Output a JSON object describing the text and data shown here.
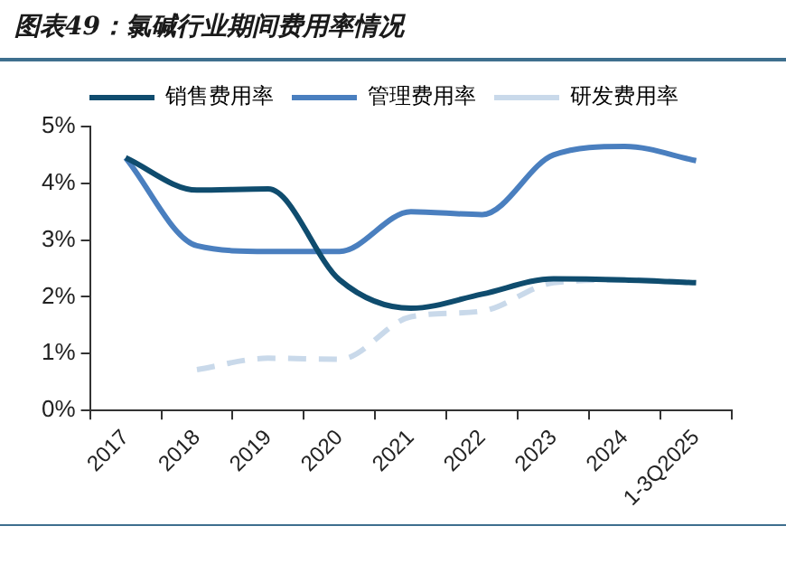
{
  "chart_data": {
    "type": "line",
    "title": "图表49：氯碱行业期间费用率情况",
    "categories": [
      "2017",
      "2018",
      "2019",
      "2020",
      "2021",
      "2022",
      "2023",
      "2024",
      "1-3Q2025"
    ],
    "series": [
      {
        "name": "销售费用率",
        "color": "#0f4c6e",
        "values": [
          4.45,
          3.88,
          3.9,
          2.3,
          1.8,
          2.05,
          2.32,
          2.3,
          2.25
        ]
      },
      {
        "name": "管理费用率",
        "color": "#4a7fbf",
        "values": [
          4.45,
          2.9,
          2.8,
          2.8,
          3.5,
          3.45,
          4.5,
          4.65,
          4.4
        ]
      },
      {
        "name": "研发费用率",
        "color": "#c9d9ea",
        "line_style": "dashed",
        "values": [
          null,
          0.72,
          0.92,
          0.9,
          1.65,
          1.75,
          2.25,
          2.3,
          2.25
        ]
      }
    ],
    "ylim": [
      0,
      5
    ],
    "yticks": [
      {
        "value": 0,
        "label": "0%"
      },
      {
        "value": 1,
        "label": "1%"
      },
      {
        "value": 2,
        "label": "2%"
      },
      {
        "value": 3,
        "label": "3%"
      },
      {
        "value": 4,
        "label": "4%"
      },
      {
        "value": 5,
        "label": "5%"
      }
    ],
    "grid": false,
    "legend": "top",
    "marker": "none",
    "line_style": "solid"
  }
}
